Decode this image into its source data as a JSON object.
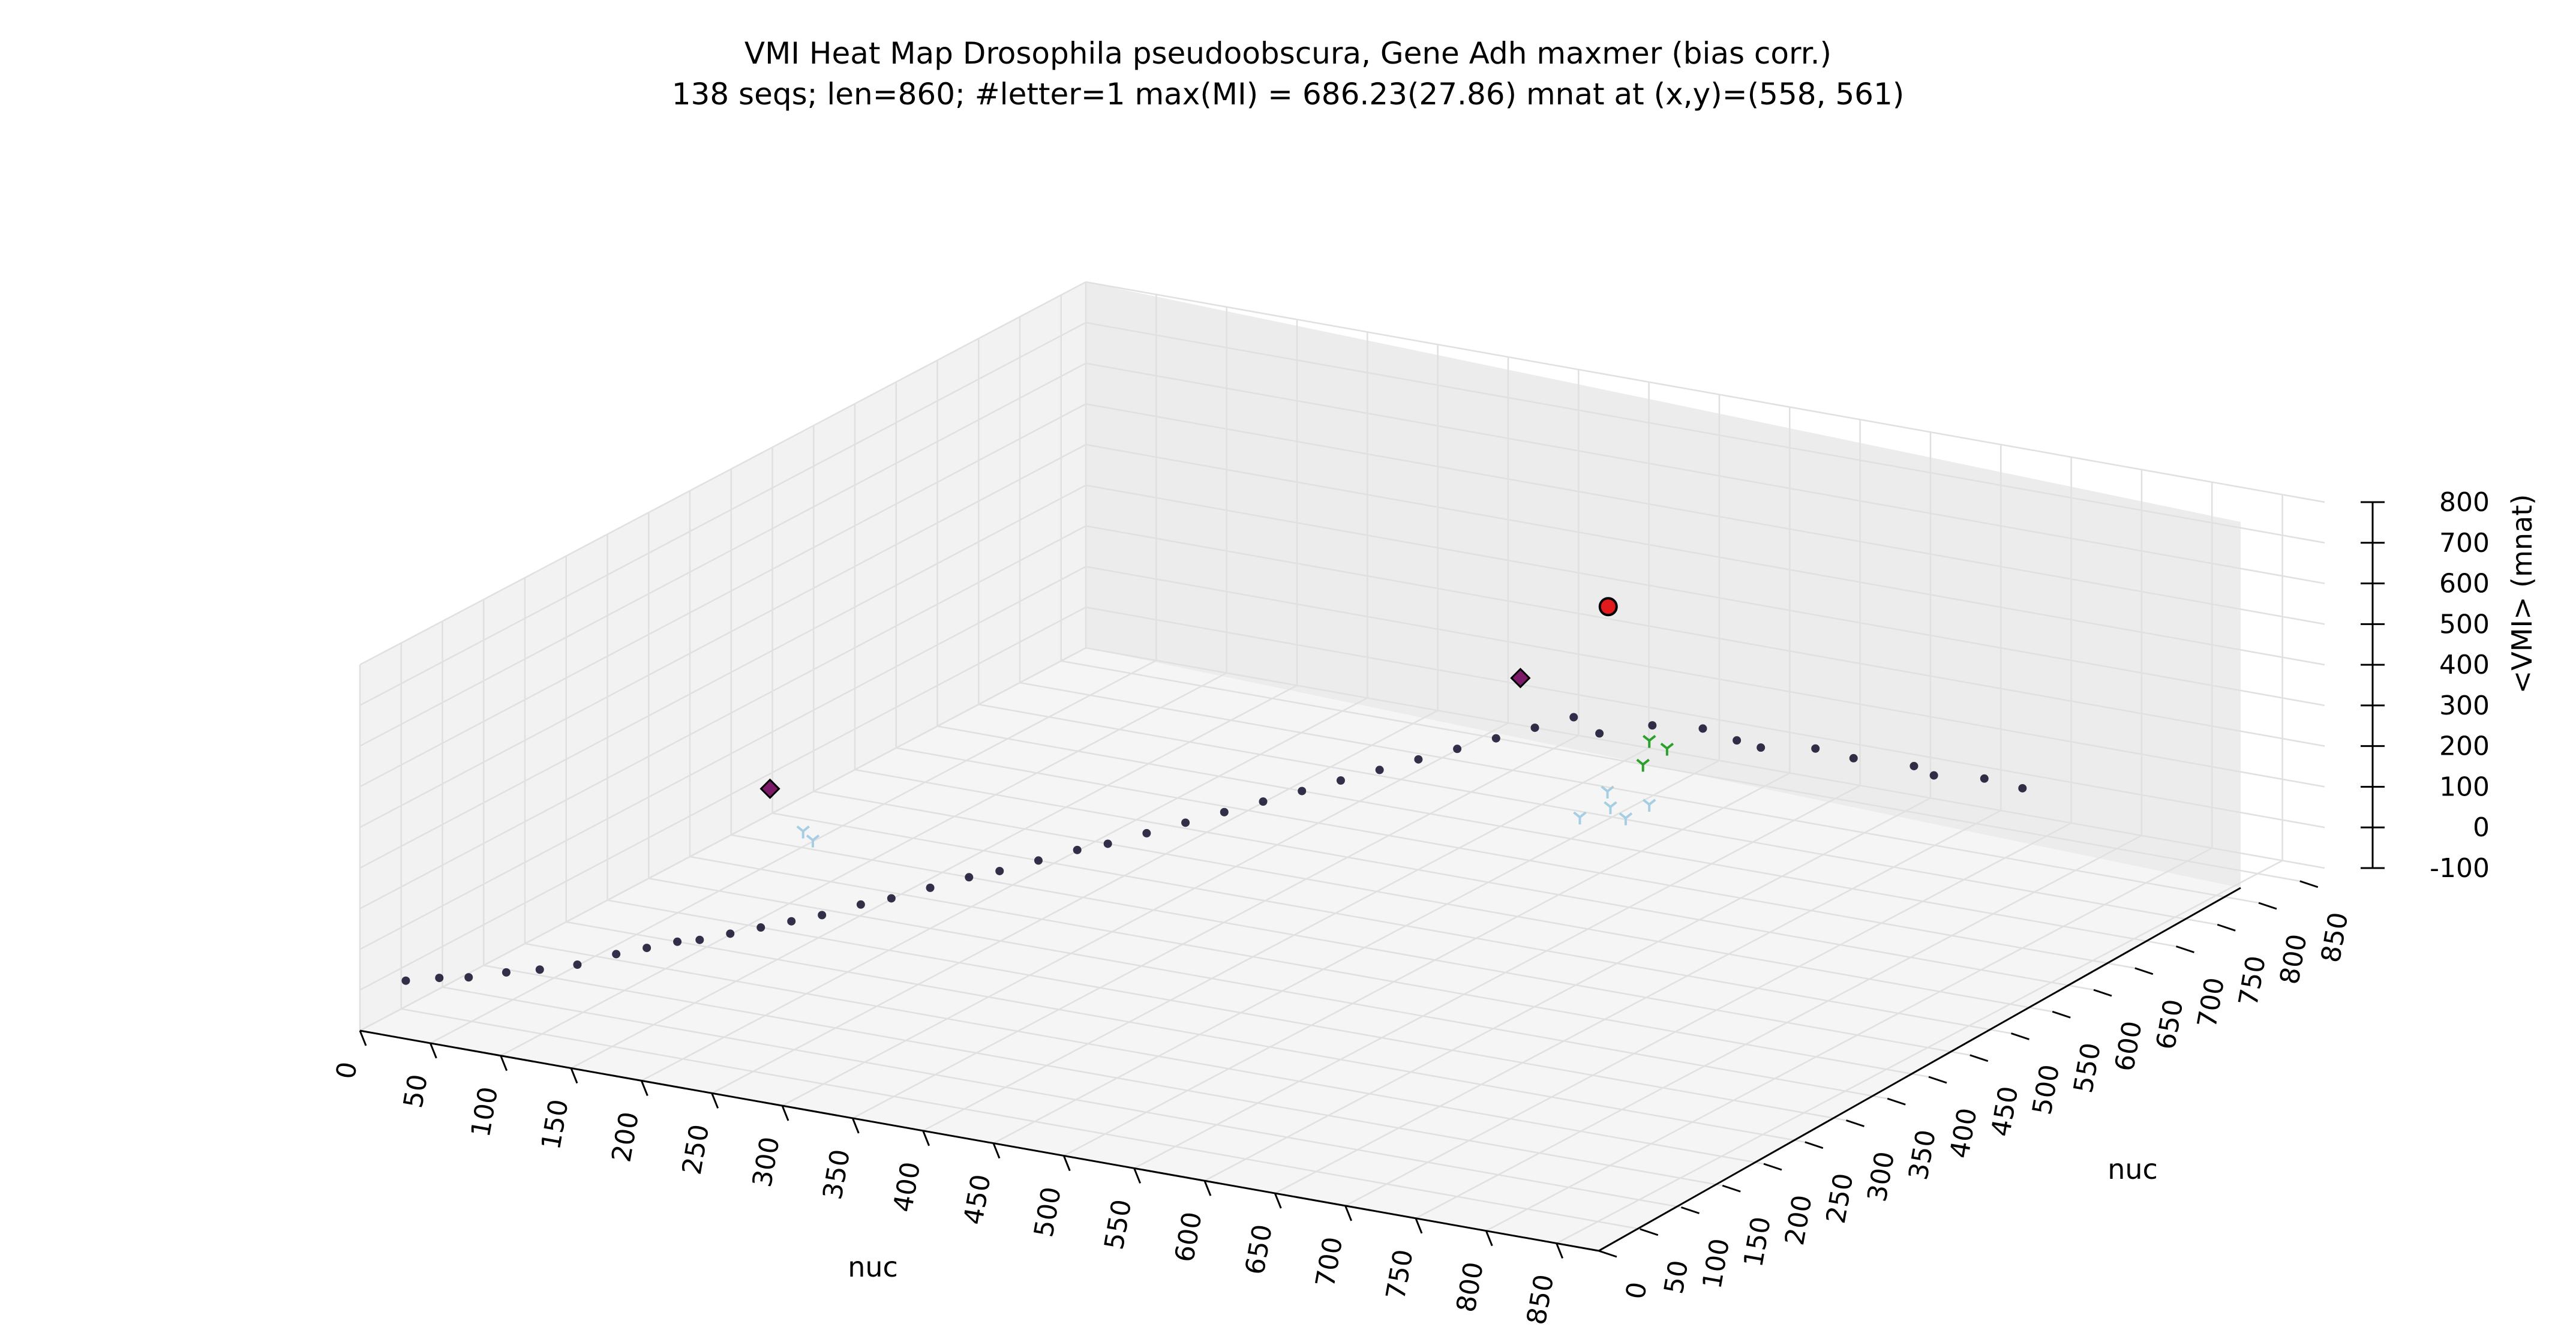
{
  "chart_data": {
    "type": "scatter",
    "projection": "3d",
    "title": "VMI Heat Map Drosophila pseudoobscura, Gene Adh maxmer (bias corr.)",
    "subtitle": "138 seqs; len=860; #letter=1 max(MI) = 686.23(27.86) mnat at (x,y)=(558, 561)",
    "xlabel": "nuc",
    "ylabel": "nuc",
    "zlabel": "<VMI> (mnat)",
    "xlim": [
      0,
      880
    ],
    "ylim": [
      0,
      880
    ],
    "zlim": [
      -100,
      800
    ],
    "xticks": [
      "0",
      "50",
      "100",
      "150",
      "200",
      "250",
      "300",
      "350",
      "400",
      "450",
      "500",
      "550",
      "600",
      "650",
      "700",
      "750",
      "800",
      "850"
    ],
    "yticks": [
      "0",
      "50",
      "100",
      "150",
      "200",
      "250",
      "300",
      "350",
      "400",
      "450",
      "500",
      "550",
      "600",
      "650",
      "700",
      "750",
      "800",
      "850"
    ],
    "zticks": [
      "-100",
      "0",
      "100",
      "200",
      "300",
      "400",
      "500",
      "600",
      "700",
      "800"
    ],
    "grid": true,
    "series": [
      {
        "marker": "dot",
        "color": "#0f0c2a",
        "points": [
          [
            15,
            30,
            0
          ],
          [
            30,
            45,
            0
          ],
          [
            45,
            55,
            0
          ],
          [
            60,
            75,
            0
          ],
          [
            75,
            90,
            0
          ],
          [
            90,
            110,
            0
          ],
          [
            100,
            140,
            0
          ],
          [
            110,
            160,
            0
          ],
          [
            120,
            180,
            0
          ],
          [
            130,
            190,
            0
          ],
          [
            140,
            210,
            0
          ],
          [
            150,
            230,
            0
          ],
          [
            160,
            250,
            0
          ],
          [
            170,
            270,
            0
          ],
          [
            180,
            300,
            0
          ],
          [
            190,
            320,
            0
          ],
          [
            200,
            350,
            0
          ],
          [
            210,
            380,
            0
          ],
          [
            220,
            400,
            0
          ],
          [
            230,
            430,
            0
          ],
          [
            240,
            460,
            0
          ],
          [
            250,
            480,
            0
          ],
          [
            260,
            510,
            0
          ],
          [
            270,
            540,
            0
          ],
          [
            280,
            570,
            0
          ],
          [
            290,
            600,
            0
          ],
          [
            300,
            630,
            0
          ],
          [
            310,
            660,
            0
          ],
          [
            320,
            690,
            0
          ],
          [
            330,
            720,
            0
          ],
          [
            340,
            750,
            0
          ],
          [
            350,
            780,
            0
          ],
          [
            360,
            810,
            0
          ],
          [
            370,
            840,
            0
          ],
          [
            400,
            820,
            0
          ],
          [
            420,
            850,
            0
          ],
          [
            450,
            860,
            0
          ],
          [
            480,
            850,
            0
          ],
          [
            500,
            845,
            0
          ],
          [
            530,
            860,
            0
          ],
          [
            560,
            855,
            0
          ],
          [
            600,
            860,
            0
          ],
          [
            620,
            850,
            0
          ],
          [
            650,
            860,
            0
          ],
          [
            680,
            855,
            0
          ]
        ]
      },
      {
        "marker": "circle",
        "color": "#e31a1c",
        "points": [
          [
            558,
            561,
            686
          ]
        ]
      },
      {
        "marker": "diamond",
        "color": "#7b1a66",
        "points": [
          [
            95,
            335,
            195
          ],
          [
            505,
            545,
            495
          ]
        ]
      },
      {
        "marker": "tri_down",
        "color": "#2ca02c",
        "points": [
          [
            520,
            668,
            160
          ],
          [
            533,
            675,
            200
          ],
          [
            528,
            662,
            230
          ]
        ]
      },
      {
        "marker": "tri_down",
        "color": "#a6cee3",
        "points": [
          [
            98,
            370,
            55
          ],
          [
            102,
            375,
            30
          ],
          [
            530,
            630,
            75
          ],
          [
            525,
            620,
            110
          ],
          [
            520,
            625,
            140
          ],
          [
            515,
            600,
            100
          ],
          [
            535,
            650,
            90
          ]
        ]
      }
    ]
  }
}
